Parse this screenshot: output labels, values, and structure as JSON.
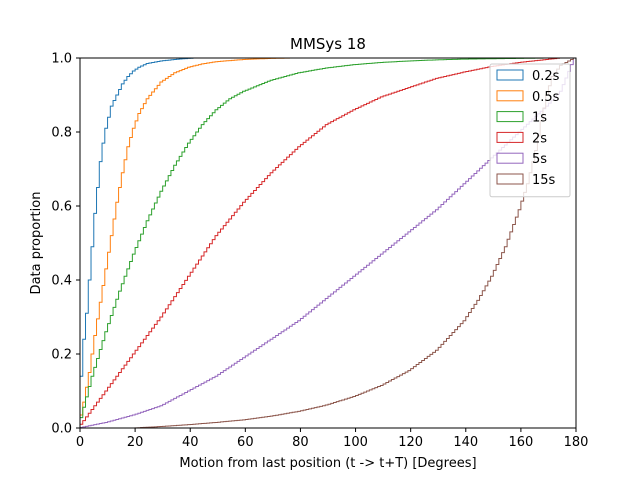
{
  "chart_data": {
    "type": "line",
    "style": "cumulative step histogram",
    "title": "MMSys 18",
    "xlabel": "Motion from last position (t -> t+T) [Degrees]",
    "ylabel": "Data proportion",
    "xlim": [
      0,
      180
    ],
    "ylim": [
      0,
      1.0
    ],
    "xticks": [
      "0",
      "20",
      "40",
      "60",
      "80",
      "100",
      "120",
      "140",
      "160",
      "180"
    ],
    "yticks": [
      "0.0",
      "0.2",
      "0.4",
      "0.6",
      "0.8",
      "1.0"
    ],
    "grid": false,
    "legend_position": "top-right",
    "series": [
      {
        "name": "0.2s",
        "color": "#1f77b4",
        "x": [
          0,
          1,
          2,
          3,
          4,
          5,
          6,
          7,
          8,
          9,
          10,
          11,
          12,
          14,
          16,
          18,
          20,
          22,
          25,
          30,
          35,
          40,
          42
        ],
        "y": [
          0.0,
          0.14,
          0.24,
          0.31,
          0.4,
          0.49,
          0.58,
          0.65,
          0.72,
          0.77,
          0.81,
          0.84,
          0.87,
          0.9,
          0.93,
          0.95,
          0.965,
          0.975,
          0.985,
          0.992,
          0.996,
          0.999,
          1.0
        ]
      },
      {
        "name": "0.5s",
        "color": "#ff7f0e",
        "x": [
          0,
          2,
          4,
          6,
          8,
          10,
          12,
          14,
          16,
          18,
          20,
          22,
          25,
          30,
          35,
          40,
          45,
          50,
          55,
          60,
          70,
          78
        ],
        "y": [
          0.0,
          0.07,
          0.15,
          0.25,
          0.34,
          0.43,
          0.52,
          0.61,
          0.69,
          0.76,
          0.81,
          0.85,
          0.89,
          0.935,
          0.96,
          0.975,
          0.984,
          0.99,
          0.993,
          0.996,
          0.999,
          1.0
        ]
      },
      {
        "name": "1s",
        "color": "#2ca02c",
        "x": [
          0,
          5,
          10,
          15,
          20,
          25,
          30,
          35,
          40,
          45,
          50,
          55,
          60,
          70,
          80,
          90,
          100,
          110,
          120,
          130,
          140,
          150,
          160,
          170
        ],
        "y": [
          0.0,
          0.14,
          0.26,
          0.37,
          0.47,
          0.56,
          0.64,
          0.71,
          0.77,
          0.82,
          0.86,
          0.89,
          0.91,
          0.94,
          0.96,
          0.973,
          0.982,
          0.988,
          0.992,
          0.995,
          0.997,
          0.998,
          0.999,
          1.0
        ]
      },
      {
        "name": "2s",
        "color": "#d62728",
        "x": [
          0,
          10,
          20,
          30,
          40,
          50,
          60,
          70,
          80,
          90,
          100,
          110,
          120,
          130,
          140,
          150,
          160,
          170,
          175
        ],
        "y": [
          0.0,
          0.1,
          0.2,
          0.3,
          0.41,
          0.52,
          0.61,
          0.69,
          0.76,
          0.82,
          0.86,
          0.895,
          0.92,
          0.945,
          0.962,
          0.977,
          0.988,
          0.996,
          1.0
        ]
      },
      {
        "name": "5s",
        "color": "#9467bd",
        "x": [
          0,
          10,
          20,
          30,
          40,
          50,
          60,
          70,
          80,
          90,
          100,
          110,
          120,
          130,
          140,
          150,
          160,
          170,
          175,
          180
        ],
        "y": [
          0.0,
          0.015,
          0.035,
          0.06,
          0.1,
          0.14,
          0.19,
          0.24,
          0.29,
          0.35,
          0.41,
          0.47,
          0.53,
          0.59,
          0.66,
          0.73,
          0.8,
          0.87,
          0.91,
          1.0
        ]
      },
      {
        "name": "15s",
        "color": "#8c564b",
        "x": [
          0,
          20,
          30,
          40,
          50,
          60,
          70,
          80,
          90,
          100,
          110,
          120,
          130,
          140,
          145,
          150,
          155,
          160,
          163,
          166,
          168,
          170,
          172,
          175,
          180
        ],
        "y": [
          0.0,
          0.0,
          0.004,
          0.009,
          0.015,
          0.022,
          0.032,
          0.045,
          0.062,
          0.085,
          0.115,
          0.155,
          0.21,
          0.29,
          0.345,
          0.41,
          0.49,
          0.59,
          0.66,
          0.75,
          0.83,
          0.9,
          0.95,
          0.98,
          1.0
        ]
      }
    ]
  }
}
